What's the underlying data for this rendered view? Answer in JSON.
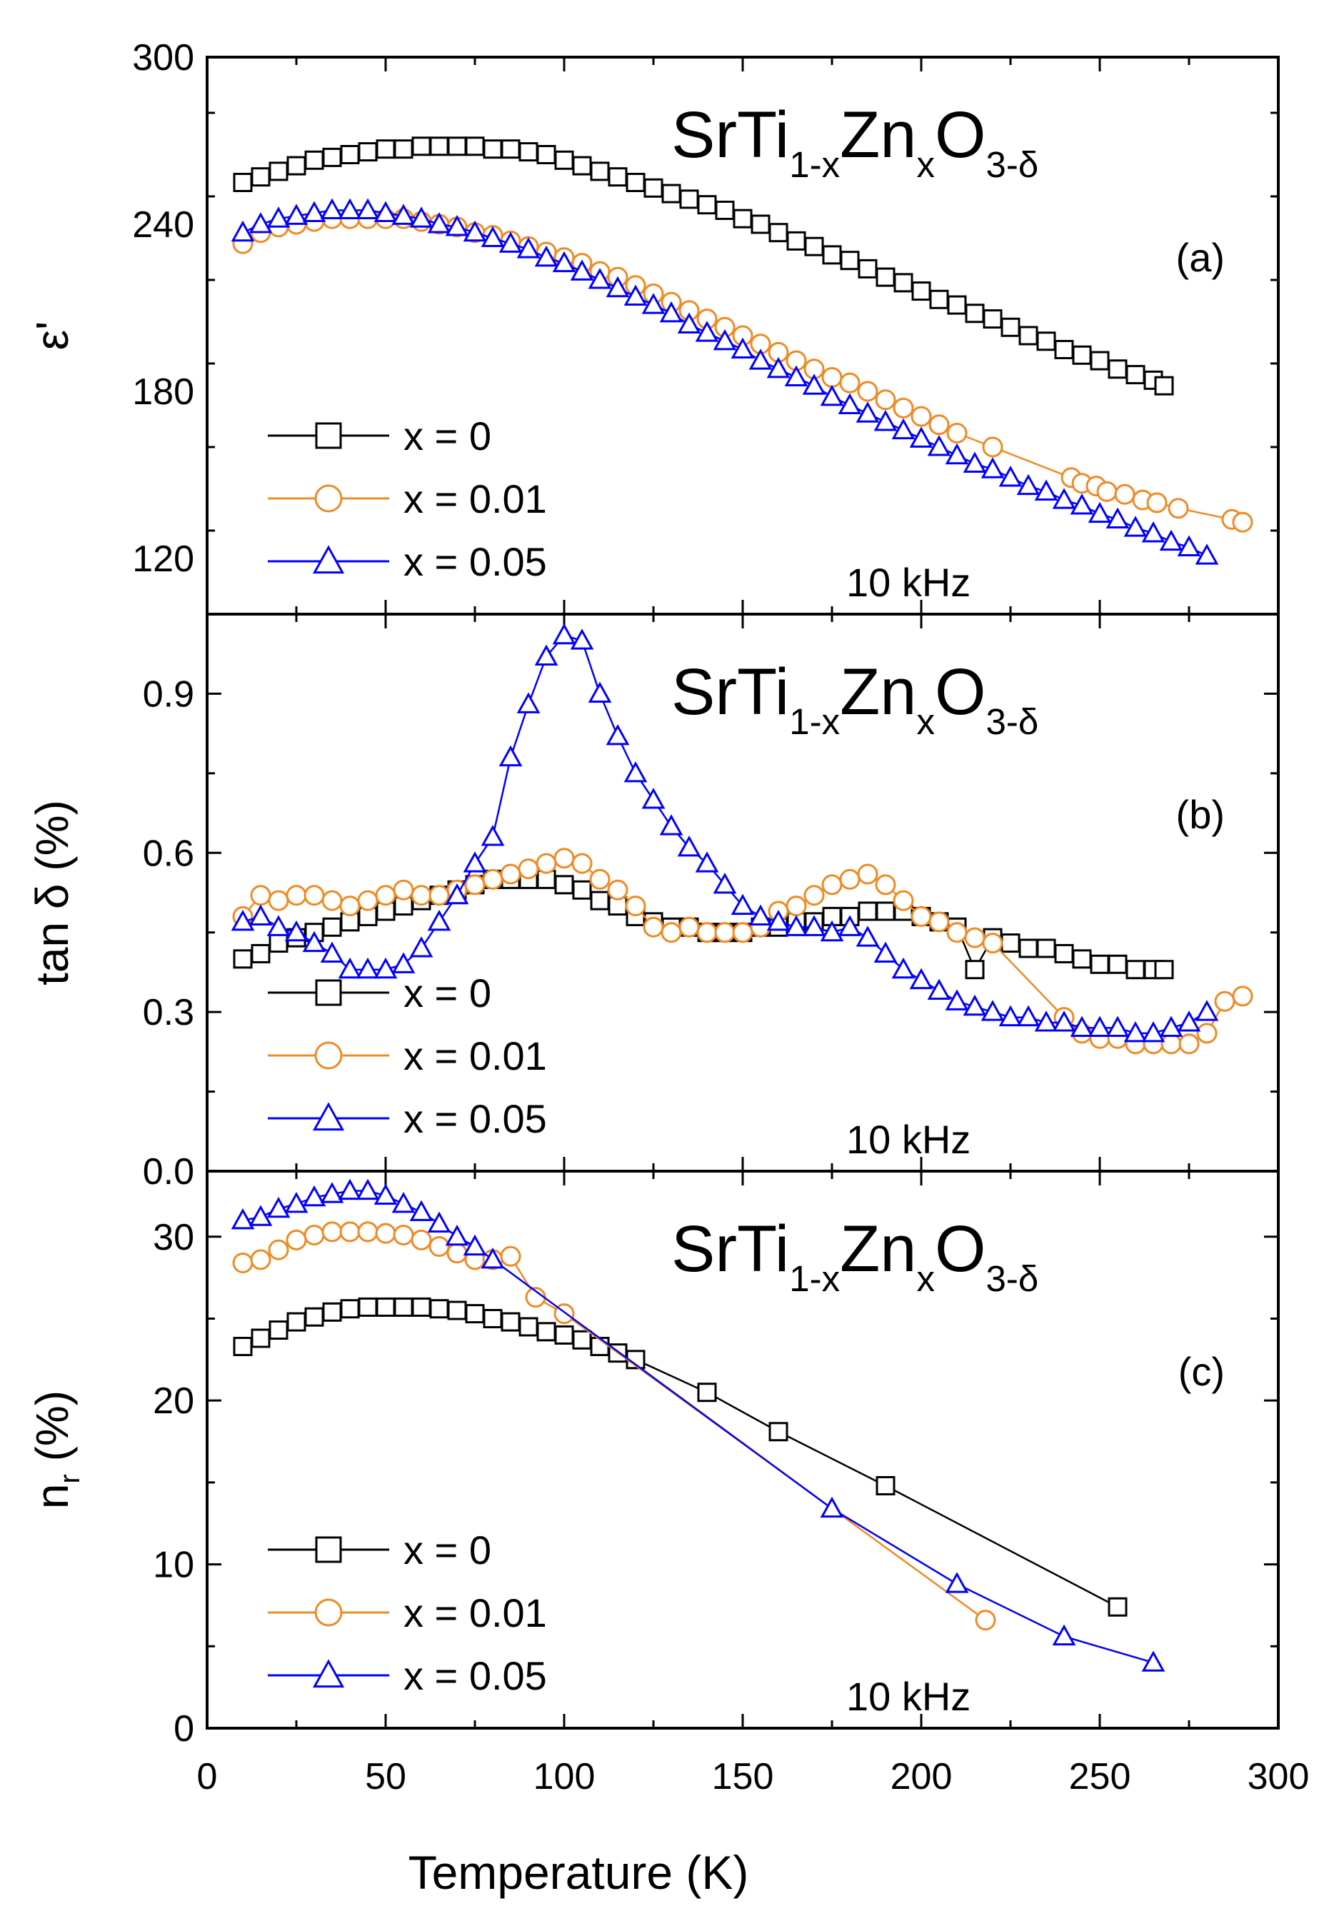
{
  "figure": {
    "xlabel": "Temperature (K)",
    "xlim": [
      0,
      300
    ],
    "xticks": [
      0,
      50,
      100,
      150,
      200,
      250,
      300
    ],
    "frequency_note": "10 kHz",
    "compound": {
      "base": "SrTi",
      "sub1": "1-x",
      "mid": "Zn",
      "sub2": "x",
      "tail": "O",
      "sub3": "3-δ"
    },
    "colors": {
      "x0": "#000000",
      "x001": "#f08a24",
      "x005": "#0000ff"
    }
  },
  "chart_data": [
    {
      "type": "line",
      "panel": "(a)",
      "title": "SrTi1-xZnxO3-δ",
      "annotation": "10 kHz",
      "xlabel": "Temperature (K)",
      "ylabel": "ε'",
      "xlim": [
        0,
        300
      ],
      "ylim": [
        100,
        300
      ],
      "yticks": [
        120,
        180,
        240,
        300
      ],
      "legend_position": "bottom-left",
      "series": [
        {
          "name": "x = 0",
          "color": "#000000",
          "marker": "square",
          "x": [
            10,
            15,
            20,
            25,
            30,
            35,
            40,
            45,
            50,
            55,
            60,
            65,
            70,
            75,
            80,
            85,
            90,
            95,
            100,
            105,
            110,
            115,
            120,
            125,
            130,
            135,
            140,
            145,
            150,
            155,
            160,
            165,
            170,
            175,
            180,
            185,
            190,
            195,
            200,
            205,
            210,
            215,
            220,
            225,
            230,
            235,
            240,
            245,
            250,
            255,
            260,
            265,
            268
          ],
          "y": [
            255,
            257,
            259,
            261,
            263,
            264,
            265,
            266,
            267,
            267,
            268,
            268,
            268,
            268,
            267,
            267,
            266,
            265,
            263,
            261,
            259,
            257,
            255,
            253,
            251,
            249,
            247,
            245,
            242,
            240,
            237,
            234,
            232,
            229,
            227,
            224,
            221,
            219,
            216,
            213,
            211,
            208,
            206,
            203,
            200,
            198,
            195,
            193,
            191,
            188,
            186,
            184,
            182
          ]
        },
        {
          "name": "x = 0.01",
          "color": "#f08a24",
          "marker": "circle",
          "x": [
            10,
            15,
            20,
            25,
            30,
            35,
            40,
            45,
            50,
            55,
            60,
            65,
            70,
            75,
            80,
            85,
            90,
            95,
            100,
            105,
            110,
            115,
            120,
            125,
            130,
            135,
            140,
            145,
            150,
            155,
            160,
            165,
            170,
            175,
            180,
            185,
            190,
            195,
            200,
            205,
            210,
            220,
            242,
            245,
            249,
            252,
            257,
            262,
            266,
            272,
            287,
            290
          ],
          "y": [
            233,
            237,
            239,
            240,
            241,
            242,
            242,
            242,
            242,
            242,
            241,
            240,
            239,
            237,
            236,
            234,
            232,
            230,
            228,
            226,
            223,
            221,
            218,
            215,
            212,
            209,
            206,
            203,
            200,
            197,
            194,
            191,
            188,
            185,
            183,
            180,
            177,
            174,
            171,
            168,
            165,
            160,
            149,
            147,
            146,
            144,
            143,
            141,
            140,
            138,
            134,
            133
          ]
        },
        {
          "name": "x = 0.05",
          "color": "#0000ff",
          "marker": "triangle",
          "x": [
            10,
            15,
            20,
            25,
            30,
            35,
            40,
            45,
            50,
            55,
            60,
            65,
            70,
            75,
            80,
            85,
            90,
            95,
            100,
            105,
            110,
            115,
            120,
            125,
            130,
            135,
            140,
            145,
            150,
            155,
            160,
            165,
            170,
            175,
            180,
            185,
            190,
            195,
            200,
            205,
            210,
            215,
            220,
            225,
            230,
            235,
            240,
            245,
            250,
            255,
            260,
            265,
            270,
            275,
            280
          ],
          "y": [
            237,
            240,
            242,
            243,
            244,
            245,
            245,
            245,
            244,
            243,
            242,
            240,
            239,
            237,
            235,
            233,
            231,
            228,
            226,
            223,
            220,
            217,
            214,
            211,
            208,
            204,
            201,
            198,
            195,
            191,
            188,
            185,
            182,
            178,
            175,
            172,
            169,
            166,
            163,
            160,
            157,
            154,
            152,
            149,
            146,
            144,
            141,
            139,
            136,
            134,
            131,
            129,
            126,
            124,
            121
          ]
        }
      ]
    },
    {
      "type": "line",
      "panel": "(b)",
      "title": "SrTi1-xZnxO3-δ",
      "annotation": "10 kHz",
      "xlabel": "Temperature (K)",
      "ylabel": "tan δ (%)",
      "xlim": [
        0,
        300
      ],
      "ylim": [
        0.0,
        1.05
      ],
      "yticks": [
        0.0,
        0.3,
        0.6,
        0.9
      ],
      "legend_position": "bottom-left",
      "series": [
        {
          "name": "x = 0",
          "color": "#000000",
          "marker": "square",
          "x": [
            10,
            15,
            20,
            25,
            30,
            35,
            40,
            45,
            50,
            55,
            60,
            65,
            70,
            75,
            80,
            85,
            90,
            95,
            100,
            105,
            110,
            115,
            120,
            125,
            130,
            135,
            140,
            145,
            150,
            155,
            160,
            165,
            170,
            175,
            180,
            185,
            190,
            195,
            200,
            205,
            210,
            215,
            220,
            225,
            230,
            235,
            240,
            245,
            250,
            255,
            260,
            265,
            268
          ],
          "y": [
            0.4,
            0.41,
            0.43,
            0.44,
            0.45,
            0.46,
            0.47,
            0.48,
            0.49,
            0.5,
            0.51,
            0.52,
            0.53,
            0.54,
            0.55,
            0.55,
            0.55,
            0.55,
            0.54,
            0.53,
            0.51,
            0.5,
            0.48,
            0.47,
            0.46,
            0.46,
            0.45,
            0.45,
            0.45,
            0.46,
            0.46,
            0.47,
            0.47,
            0.48,
            0.48,
            0.49,
            0.49,
            0.49,
            0.48,
            0.47,
            0.46,
            0.38,
            0.44,
            0.43,
            0.42,
            0.42,
            0.41,
            0.4,
            0.39,
            0.39,
            0.38,
            0.38,
            0.38
          ]
        },
        {
          "name": "x = 0.01",
          "color": "#f08a24",
          "marker": "circle",
          "x": [
            10,
            15,
            20,
            25,
            30,
            35,
            40,
            45,
            50,
            55,
            60,
            65,
            70,
            75,
            80,
            85,
            90,
            95,
            100,
            105,
            110,
            115,
            120,
            125,
            130,
            135,
            140,
            145,
            150,
            155,
            160,
            165,
            170,
            175,
            180,
            185,
            190,
            195,
            200,
            205,
            210,
            215,
            220,
            240,
            245,
            250,
            255,
            260,
            265,
            270,
            275,
            280,
            285,
            290
          ],
          "y": [
            0.48,
            0.52,
            0.51,
            0.52,
            0.52,
            0.51,
            0.5,
            0.51,
            0.52,
            0.53,
            0.52,
            0.52,
            0.53,
            0.54,
            0.55,
            0.56,
            0.57,
            0.58,
            0.59,
            0.58,
            0.55,
            0.53,
            0.5,
            0.46,
            0.45,
            0.46,
            0.45,
            0.45,
            0.45,
            0.46,
            0.49,
            0.5,
            0.52,
            0.54,
            0.55,
            0.56,
            0.54,
            0.51,
            0.48,
            0.47,
            0.45,
            0.44,
            0.43,
            0.29,
            0.26,
            0.25,
            0.25,
            0.24,
            0.24,
            0.24,
            0.24,
            0.26,
            0.32,
            0.33
          ]
        },
        {
          "name": "x = 0.05",
          "color": "#0000ff",
          "marker": "triangle",
          "x": [
            10,
            15,
            20,
            25,
            30,
            35,
            40,
            45,
            50,
            55,
            60,
            65,
            70,
            75,
            80,
            85,
            90,
            95,
            100,
            105,
            110,
            115,
            120,
            125,
            130,
            135,
            140,
            145,
            150,
            155,
            160,
            165,
            170,
            175,
            180,
            185,
            190,
            195,
            200,
            205,
            210,
            215,
            220,
            225,
            230,
            235,
            240,
            245,
            250,
            255,
            260,
            265,
            270,
            275,
            280
          ],
          "y": [
            0.47,
            0.48,
            0.46,
            0.45,
            0.43,
            0.41,
            0.38,
            0.38,
            0.38,
            0.39,
            0.42,
            0.47,
            0.52,
            0.58,
            0.63,
            0.78,
            0.88,
            0.97,
            1.01,
            1.0,
            0.9,
            0.82,
            0.75,
            0.7,
            0.65,
            0.61,
            0.58,
            0.54,
            0.5,
            0.48,
            0.47,
            0.46,
            0.46,
            0.45,
            0.46,
            0.44,
            0.41,
            0.38,
            0.36,
            0.34,
            0.32,
            0.31,
            0.3,
            0.29,
            0.29,
            0.28,
            0.28,
            0.27,
            0.27,
            0.27,
            0.26,
            0.26,
            0.27,
            0.28,
            0.3
          ]
        }
      ]
    },
    {
      "type": "line",
      "panel": "(c)",
      "title": "SrTi1-xZnxO3-δ",
      "annotation": "10 kHz",
      "xlabel": "Temperature (K)",
      "ylabel": "n_r (%)",
      "ylabel_main": "n",
      "ylabel_sub": "r",
      "ylabel_tail": " (%)",
      "xlim": [
        0,
        300
      ],
      "ylim": [
        0,
        34
      ],
      "yticks": [
        0,
        10,
        20,
        30
      ],
      "legend_position": "bottom-left",
      "series": [
        {
          "name": "x = 0",
          "color": "#000000",
          "marker": "square",
          "x": [
            10,
            15,
            20,
            25,
            30,
            35,
            40,
            45,
            50,
            55,
            60,
            65,
            70,
            75,
            80,
            85,
            90,
            95,
            100,
            105,
            110,
            115,
            120,
            140,
            160,
            190,
            255
          ],
          "y": [
            23.3,
            23.8,
            24.3,
            24.8,
            25.1,
            25.4,
            25.6,
            25.7,
            25.7,
            25.7,
            25.7,
            25.6,
            25.5,
            25.3,
            25.0,
            24.8,
            24.5,
            24.2,
            24.0,
            23.7,
            23.3,
            22.9,
            22.5,
            20.5,
            18.1,
            14.8,
            7.4
          ]
        },
        {
          "name": "x = 0.01",
          "color": "#f08a24",
          "marker": "circle",
          "x": [
            10,
            15,
            20,
            25,
            30,
            35,
            40,
            45,
            50,
            55,
            60,
            65,
            70,
            75,
            80,
            85,
            92,
            100,
            218
          ],
          "y": [
            28.4,
            28.6,
            29.2,
            29.8,
            30.1,
            30.3,
            30.3,
            30.3,
            30.2,
            30.1,
            29.8,
            29.4,
            29.0,
            28.6,
            28.6,
            28.8,
            26.3,
            25.3,
            6.6
          ]
        },
        {
          "name": "x = 0.05",
          "color": "#0000ff",
          "marker": "triangle",
          "x": [
            10,
            15,
            20,
            25,
            30,
            35,
            40,
            45,
            50,
            55,
            60,
            65,
            70,
            75,
            80,
            175,
            210,
            240,
            265
          ],
          "y": [
            31.0,
            31.2,
            31.7,
            32.0,
            32.4,
            32.6,
            32.8,
            32.8,
            32.5,
            32.0,
            31.5,
            30.8,
            30.0,
            29.4,
            28.6,
            13.4,
            8.8,
            5.6,
            4.0
          ]
        }
      ]
    }
  ]
}
